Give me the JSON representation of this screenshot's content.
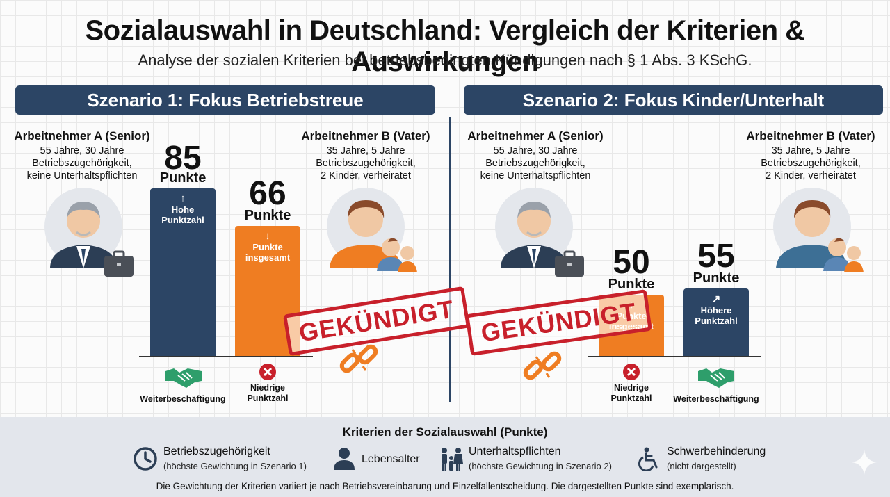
{
  "title": "Sozialauswahl in Deutschland: Vergleich der Kriterien & Auswirkungen",
  "subtitle": "Analyse der sozialen Kriterien bei betriebsbedingten Kündigungen nach § 1 Abs. 3 KSchG.",
  "colors": {
    "navy": "#2c4565",
    "orange": "#ef7d22",
    "red": "#c8202b",
    "green": "#2e9e6b"
  },
  "scenarios": [
    {
      "header": "Szenario 1: Fokus Betriebstreue",
      "person_a": {
        "name": "Arbeitnehmer A (Senior)",
        "desc": [
          "55 Jahre, 30 Jahre",
          "Betriebszugehörigkeit,",
          "keine Unterhaltspflichten"
        ]
      },
      "person_b": {
        "name": "Arbeitnehmer B (Vater)",
        "desc": [
          "35 Jahre, 5 Jahre",
          "Betriebszugehörigkeit,",
          "2 Kinder, verheiratet"
        ]
      },
      "bars": [
        {
          "value": "85",
          "unit": "Punkte",
          "arrow": "↑",
          "note": [
            "Hohe",
            "Punktzahl"
          ],
          "outcome": [
            "Weiterbeschäftigung"
          ],
          "outcome_icon": "handshake-icon"
        },
        {
          "value": "66",
          "unit": "Punkte",
          "arrow": "↓",
          "note": [
            "Punkte",
            "insgesamt"
          ],
          "outcome": [
            "Niedrige",
            "Punktzahl"
          ],
          "outcome_icon": "x-circle-icon"
        }
      ],
      "stamp": "GEKÜNDIGT"
    },
    {
      "header": "Szenario 2: Fokus Kinder/Unterhalt",
      "person_a": {
        "name": "Arbeitnehmer A (Senior)",
        "desc": [
          "55 Jahre, 30 Jahre",
          "Betriebszugehörigkeit,",
          "keine Unterhaltspflichten"
        ]
      },
      "person_b": {
        "name": "Arbeitnehmer B (Vater)",
        "desc": [
          "35 Jahre, 5 Jahre",
          "Betriebszugehörigkeit,",
          "2 Kinder, verheiratet"
        ]
      },
      "bars": [
        {
          "value": "50",
          "unit": "Punkte",
          "arrow": "↓",
          "note": [
            "Punkte",
            "insgesamt"
          ],
          "outcome": [
            "Niedrige",
            "Punktzahl"
          ],
          "outcome_icon": "x-circle-icon"
        },
        {
          "value": "55",
          "unit": "Punkte",
          "arrow": "↗",
          "note": [
            "Höhere",
            "Punktzahl"
          ],
          "outcome": [
            "Weiterbeschäftigung"
          ],
          "outcome_icon": "handshake-icon"
        }
      ],
      "stamp": "GEKÜNDIGT"
    }
  ],
  "chart_data": [
    {
      "type": "bar",
      "title": "Szenario 1: Fokus Betriebstreue",
      "categories": [
        "Arbeitnehmer A (Senior)",
        "Arbeitnehmer B (Vater)"
      ],
      "values": [
        85,
        66
      ],
      "ylabel": "",
      "xlabel": "",
      "ylim": [
        0,
        100
      ],
      "bar_colors": [
        "#2c4565",
        "#ef7d22"
      ],
      "grid": true
    },
    {
      "type": "bar",
      "title": "Szenario 2: Fokus Kinder/Unterhalt",
      "categories": [
        "Arbeitnehmer A (Senior)",
        "Arbeitnehmer B (Vater)"
      ],
      "values": [
        50,
        55
      ],
      "ylabel": "",
      "xlabel": "",
      "ylim": [
        0,
        100
      ],
      "bar_colors": [
        "#ef7d22",
        "#2c4565"
      ],
      "grid": true
    }
  ],
  "footer": {
    "title": "Kriterien der Sozialauswahl (Punkte)",
    "criteria": [
      {
        "label": "Betriebszugehörigkeit",
        "note": "(höchste Gewichtung in Szenario 1)",
        "icon": "clock-icon"
      },
      {
        "label": "Lebensalter",
        "note": "",
        "icon": "person-icon"
      },
      {
        "label": "Unterhaltspflichten",
        "note": "(höchste Gewichtung in Szenario 2)",
        "icon": "family-icon"
      },
      {
        "label": "Schwerbehinderung",
        "note": "(nicht dargestellt)",
        "icon": "wheelchair-icon"
      }
    ],
    "footnote": "Die Gewichtung der Kriterien variiert je nach Betriebsvereinbarung und Einzelfallentscheidung. Die dargestellten Punkte sind exemplarisch."
  }
}
